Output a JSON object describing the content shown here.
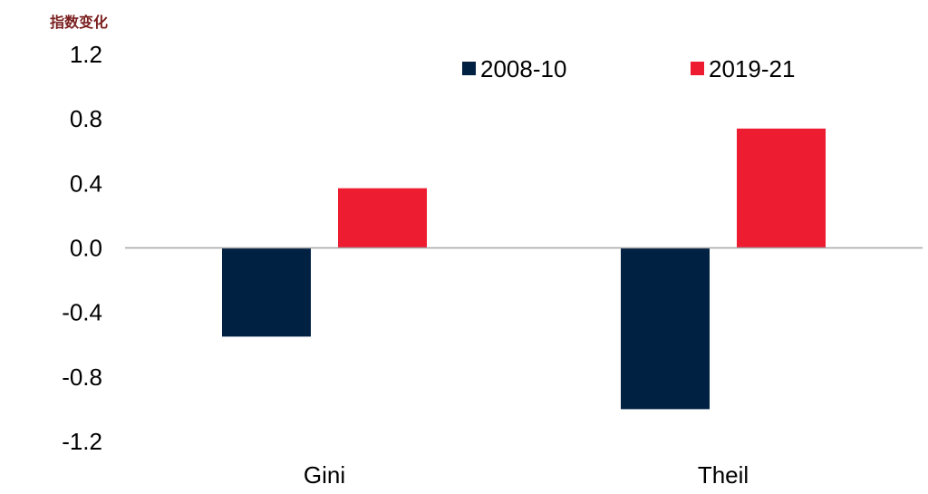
{
  "chart_data": {
    "type": "bar",
    "ylabel": "指数变化",
    "categories": [
      "Gini",
      "Theil"
    ],
    "series": [
      {
        "name": "2008-10",
        "values": [
          -0.55,
          -1.0
        ],
        "color": "#002142"
      },
      {
        "name": "2019-21",
        "values": [
          0.37,
          0.74
        ],
        "color": "#EE1C31"
      }
    ],
    "ylim": [
      -1.2,
      1.2
    ],
    "yticks": [
      "1.2",
      "0.8",
      "0.4",
      "0.0",
      "-0.4",
      "-0.8",
      "-1.2"
    ],
    "ytick_values": [
      1.2,
      0.8,
      0.4,
      0.0,
      -0.4,
      -0.8,
      -1.2
    ],
    "grid": false,
    "legend_position": "top-right",
    "ylabel_color": "#7B1F1F",
    "axis_color": "#A6A6A6"
  }
}
